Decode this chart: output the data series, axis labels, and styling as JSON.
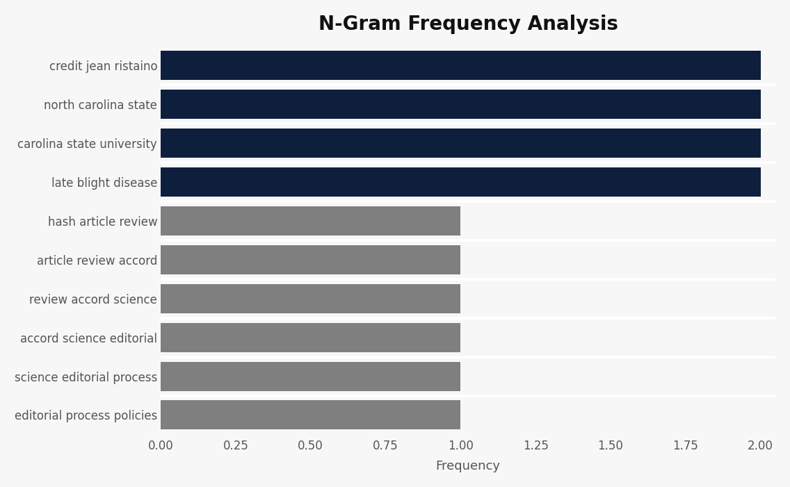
{
  "title": "N-Gram Frequency Analysis",
  "categories": [
    "editorial process policies",
    "science editorial process",
    "accord science editorial",
    "review accord science",
    "article review accord",
    "hash article review",
    "late blight disease",
    "carolina state university",
    "north carolina state",
    "credit jean ristaino"
  ],
  "values": [
    1,
    1,
    1,
    1,
    1,
    1,
    2,
    2,
    2,
    2
  ],
  "colors": [
    "#7f7f7f",
    "#7f7f7f",
    "#7f7f7f",
    "#7f7f7f",
    "#7f7f7f",
    "#7f7f7f",
    "#0d1f3c",
    "#0d1f3c",
    "#0d1f3c",
    "#0d1f3c"
  ],
  "xlabel": "Frequency",
  "xlim": [
    0,
    2.05
  ],
  "xticks": [
    0.0,
    0.25,
    0.5,
    0.75,
    1.0,
    1.25,
    1.5,
    1.75,
    2.0
  ],
  "xtick_labels": [
    "0.00",
    "0.25",
    "0.50",
    "0.75",
    "1.00",
    "1.25",
    "1.50",
    "1.75",
    "2.00"
  ],
  "background_color": "#f7f7f7",
  "plot_bg_color": "#f7f7f7",
  "title_fontsize": 20,
  "label_fontsize": 12,
  "xlabel_fontsize": 13,
  "bar_height": 0.75
}
